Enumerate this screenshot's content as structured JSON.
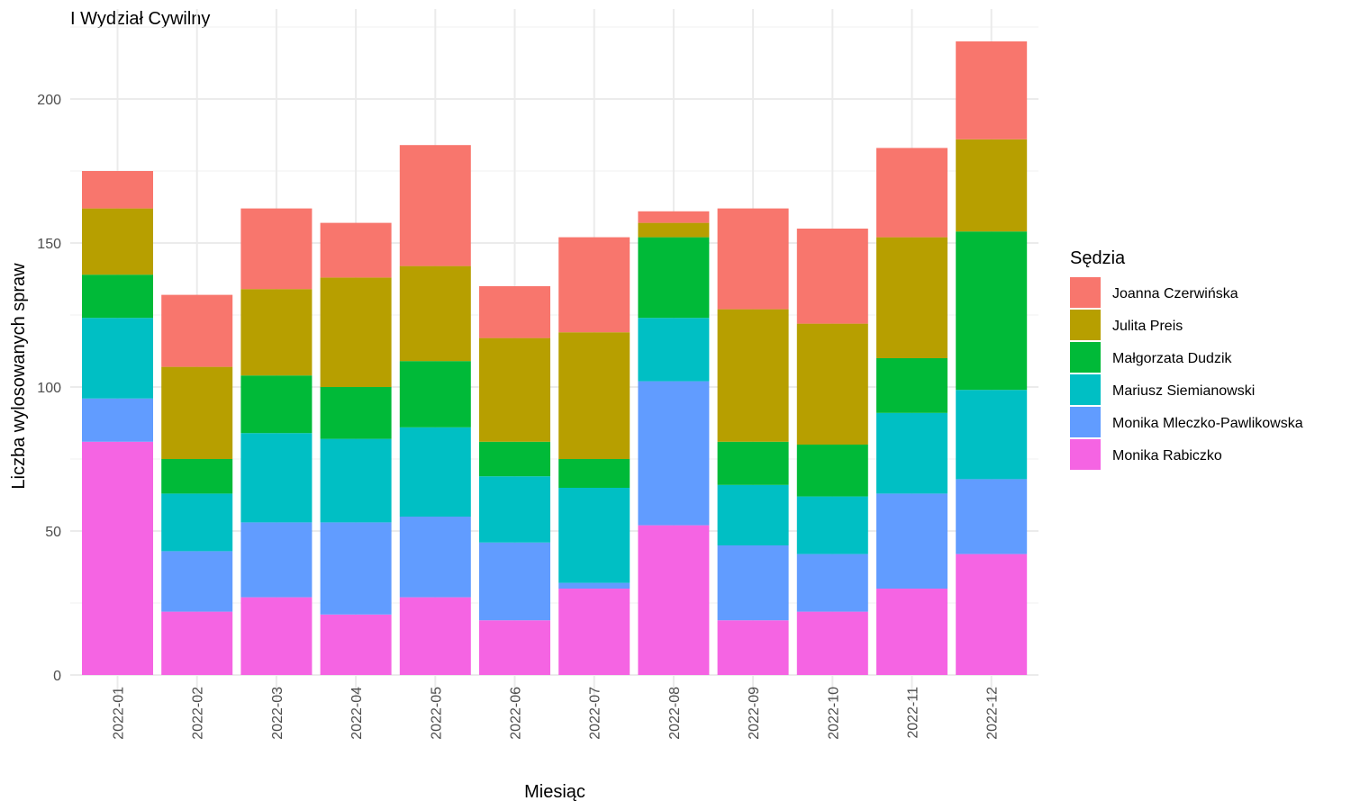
{
  "chart_data": {
    "type": "bar",
    "stacked": true,
    "title": "I Wydział Cywilny",
    "xlabel": "Miesiąc",
    "ylabel": "Liczba wylosowanych spraw",
    "ylim": [
      0,
      230
    ],
    "yticks": [
      0,
      50,
      100,
      150,
      200
    ],
    "grid": true,
    "legend_position": "right",
    "legend_title": "Sędzia",
    "categories": [
      "2022-01",
      "2022-02",
      "2022-03",
      "2022-04",
      "2022-05",
      "2022-06",
      "2022-07",
      "2022-08",
      "2022-09",
      "2022-10",
      "2022-11",
      "2022-12"
    ],
    "series": [
      {
        "name": "Monika Rabiczko",
        "color": "#F564E3",
        "values": [
          81,
          22,
          27,
          21,
          27,
          19,
          30,
          52,
          19,
          22,
          30,
          42
        ]
      },
      {
        "name": "Monika Mleczko-Pawlikowska",
        "color": "#619CFF",
        "values": [
          15,
          21,
          26,
          32,
          28,
          27,
          2,
          50,
          26,
          20,
          33,
          26
        ]
      },
      {
        "name": "Mariusz Siemianowski",
        "color": "#00BFC4",
        "values": [
          28,
          20,
          31,
          29,
          31,
          23,
          33,
          22,
          21,
          20,
          28,
          31
        ]
      },
      {
        "name": "Małgorzata Dudzik",
        "color": "#00BA38",
        "values": [
          15,
          12,
          20,
          18,
          23,
          12,
          10,
          28,
          15,
          18,
          19,
          55
        ]
      },
      {
        "name": "Julita Preis",
        "color": "#B79F00",
        "values": [
          23,
          32,
          30,
          38,
          33,
          36,
          44,
          5,
          46,
          42,
          42,
          32
        ]
      },
      {
        "name": "Joanna Czerwińska",
        "color": "#F8766D",
        "values": [
          13,
          25,
          28,
          19,
          42,
          18,
          33,
          4,
          35,
          33,
          31,
          34
        ]
      }
    ],
    "legend_order": [
      "Joanna Czerwińska",
      "Julita Preis",
      "Małgorzata Dudzik",
      "Mariusz Siemianowski",
      "Monika Mleczko-Pawlikowska",
      "Monika Rabiczko"
    ]
  }
}
